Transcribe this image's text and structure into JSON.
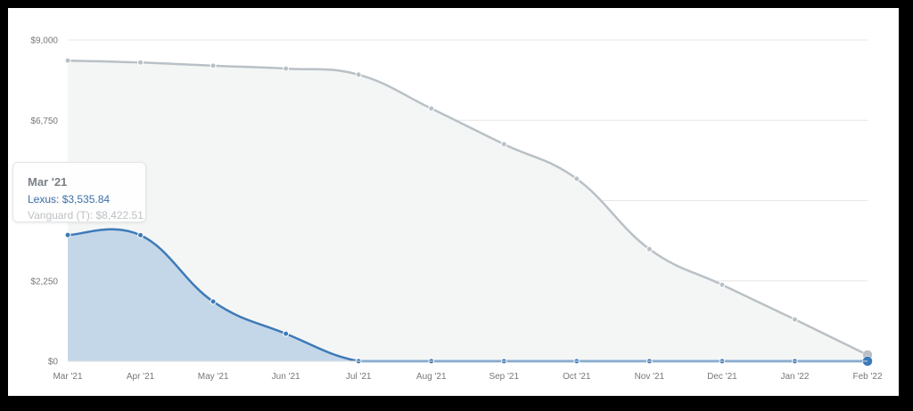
{
  "chart_data": {
    "type": "area",
    "title": "",
    "xlabel": "",
    "ylabel": "",
    "categories": [
      "Mar '21",
      "Apr '21",
      "May '21",
      "Jun '21",
      "Jul '21",
      "Aug '21",
      "Sep '21",
      "Oct '21",
      "Nov '21",
      "Dec '21",
      "Jan '22",
      "Feb '22"
    ],
    "ylim": [
      0,
      9000
    ],
    "yticks": [
      "$0",
      "$2,250",
      "$4,500",
      "$6,750",
      "$9,000"
    ],
    "ytick_values": [
      0,
      2250,
      4500,
      6750,
      9000
    ],
    "grid": true,
    "legend": "none",
    "series": [
      {
        "name": "Vanguard (T)",
        "color": "#b9c1c6",
        "fill": "#f4f6f6",
        "values": [
          8422.51,
          8370,
          8280,
          8200,
          8030,
          7080,
          6080,
          5110,
          3140,
          2140,
          1170,
          175
        ]
      },
      {
        "name": "Lexus",
        "color": "#3d7ab8",
        "fill": "#c4d7e8",
        "values": [
          3535.84,
          3530,
          1670,
          770,
          0,
          0,
          0,
          0,
          0,
          0,
          0,
          0
        ]
      }
    ],
    "tooltip": {
      "title": "Mar '21",
      "lexus": "Lexus: $3,535.84",
      "vanguard": "Vanguard (T): $8,422.51"
    }
  }
}
